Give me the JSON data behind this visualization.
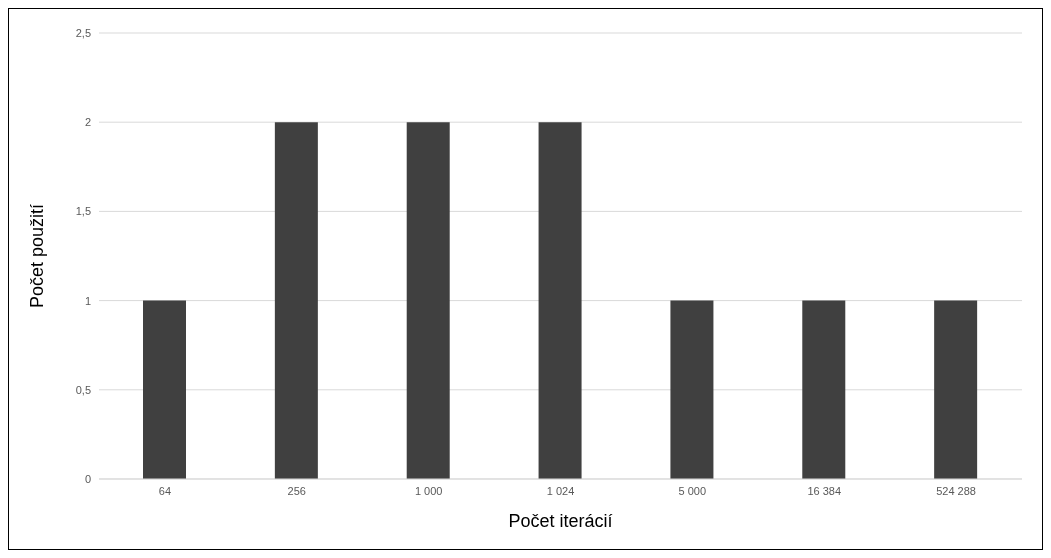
{
  "chart_data": {
    "type": "bar",
    "xlabel": "Počet iterácií",
    "ylabel": "Počet použití",
    "categories": [
      "64",
      "256",
      "1 000",
      "1 024",
      "5 000",
      "16 384",
      "524 288"
    ],
    "values": [
      1,
      2,
      2,
      2,
      1,
      1,
      1
    ],
    "color": "#404040",
    "ylim": [
      0,
      2.5
    ],
    "yticks": [
      0,
      {
        "value": 0.5,
        "label": "0,5"
      },
      1,
      {
        "value": 1.5,
        "label": "1,5"
      },
      2,
      {
        "value": 2.5,
        "label": "2,5"
      }
    ],
    "grid": "y"
  }
}
